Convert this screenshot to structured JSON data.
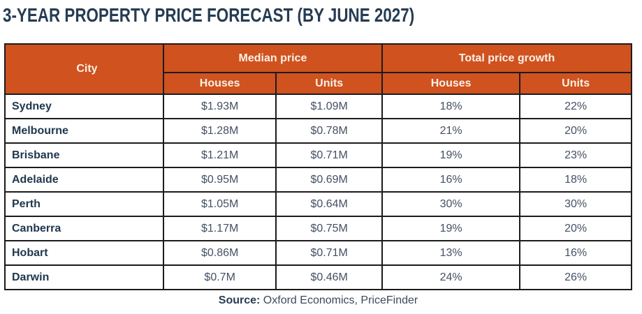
{
  "title": "3-YEAR PROPERTY PRICE FORECAST (BY JUNE 2027)",
  "table": {
    "city_header": "City",
    "median_group": "Median price",
    "growth_group": "Total price growth",
    "median_sub_houses": "Houses",
    "median_sub_units": "Units",
    "growth_sub_houses": "Houses",
    "growth_sub_units": "Units"
  },
  "source": {
    "label": "Source:",
    "text": " Oxford Economics, PriceFinder"
  },
  "colors": {
    "header_bg": "#CF521F",
    "header_text": "#FBF1E7",
    "title_text": "#263C52",
    "city_text": "#21374D",
    "value_text": "#445063",
    "border": "#1B1B1B"
  },
  "chart_data": {
    "type": "table",
    "title": "3-YEAR PROPERTY PRICE FORECAST (BY JUNE 2027)",
    "columns": [
      "City",
      "Median price - Houses",
      "Median price - Units",
      "Total price growth - Houses",
      "Total price growth - Units"
    ],
    "rows": [
      [
        "Sydney",
        "$1.93M",
        "$1.09M",
        "18%",
        "22%"
      ],
      [
        "Melbourne",
        "$1.28M",
        "$0.78M",
        "21%",
        "20%"
      ],
      [
        "Brisbane",
        "$1.21M",
        "$0.71M",
        "19%",
        "23%"
      ],
      [
        "Adelaide",
        "$0.95M",
        "$0.69M",
        "16%",
        "18%"
      ],
      [
        "Perth",
        "$1.05M",
        "$0.64M",
        "30%",
        "30%"
      ],
      [
        "Canberra",
        "$1.17M",
        "$0.75M",
        "19%",
        "20%"
      ],
      [
        "Hobart",
        "$0.86M",
        "$0.71M",
        "13%",
        "16%"
      ],
      [
        "Darwin",
        "$0.7M",
        "$0.46M",
        "24%",
        "26%"
      ]
    ],
    "source": "Source: Oxford Economics, PriceFinder"
  }
}
